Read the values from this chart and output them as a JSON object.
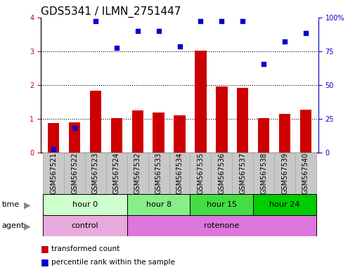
{
  "title": "GDS5341 / ILMN_2751447",
  "samples": [
    "GSM567521",
    "GSM567522",
    "GSM567523",
    "GSM567524",
    "GSM567532",
    "GSM567533",
    "GSM567534",
    "GSM567535",
    "GSM567536",
    "GSM567537",
    "GSM567538",
    "GSM567539",
    "GSM567540"
  ],
  "red_bars": [
    0.88,
    0.9,
    1.83,
    1.02,
    1.25,
    1.18,
    1.1,
    3.02,
    1.95,
    1.92,
    1.02,
    1.15,
    1.28
  ],
  "blue_dots": [
    0.1,
    0.72,
    3.9,
    3.1,
    3.6,
    3.6,
    3.15,
    3.9,
    3.9,
    3.9,
    2.62,
    3.3,
    3.55
  ],
  "ylim_left": [
    0,
    4
  ],
  "ylim_right": [
    0,
    100
  ],
  "yticks_left": [
    0,
    1,
    2,
    3,
    4
  ],
  "ytick_labels_right": [
    "0",
    "25",
    "50",
    "75",
    "100%"
  ],
  "red_color": "#cc0000",
  "blue_color": "#0000cc",
  "bar_bg_color": "#c8c8c8",
  "bar_border_color": "#aaaaaa",
  "time_groups": [
    {
      "label": "hour 0",
      "start": 0,
      "end": 4,
      "color": "#ccffcc"
    },
    {
      "label": "hour 8",
      "start": 4,
      "end": 7,
      "color": "#88ee88"
    },
    {
      "label": "hour 15",
      "start": 7,
      "end": 10,
      "color": "#44dd44"
    },
    {
      "label": "hour 24",
      "start": 10,
      "end": 13,
      "color": "#00cc00"
    }
  ],
  "agent_groups": [
    {
      "label": "control",
      "start": 0,
      "end": 4,
      "color": "#e8aadd"
    },
    {
      "label": "rotenone",
      "start": 4,
      "end": 13,
      "color": "#dd77dd"
    }
  ],
  "title_fontsize": 11,
  "tick_fontsize": 7,
  "label_fontsize": 8,
  "row_fontsize": 8
}
